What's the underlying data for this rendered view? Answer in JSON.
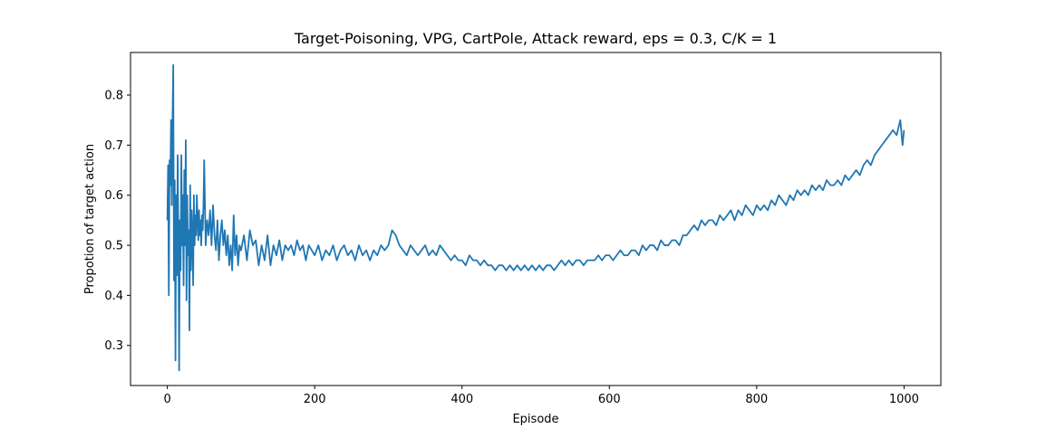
{
  "chart_data": {
    "type": "line",
    "title": "Target-Poisoning, VPG, CartPole, Attack reward, eps = 0.3, C/K = 1",
    "xlabel": "Episode",
    "ylabel": "Propotion of target action",
    "xlim": [
      -50,
      1050
    ],
    "ylim": [
      0.22,
      0.885
    ],
    "xticks": [
      0,
      200,
      400,
      600,
      800,
      1000
    ],
    "xtick_labels": [
      "0",
      "200",
      "400",
      "600",
      "800",
      "1000"
    ],
    "yticks": [
      0.3,
      0.4,
      0.5,
      0.6,
      0.7,
      0.8
    ],
    "ytick_labels": [
      "0.3",
      "0.4",
      "0.5",
      "0.6",
      "0.7",
      "0.8"
    ],
    "grid": false,
    "line_color": "#1f77b4",
    "series": [
      {
        "values": [
          [
            0,
            0.55
          ],
          [
            1,
            0.66
          ],
          [
            2,
            0.4
          ],
          [
            3,
            0.67
          ],
          [
            4,
            0.62
          ],
          [
            5,
            0.75
          ],
          [
            6,
            0.58
          ],
          [
            7,
            0.75
          ],
          [
            8,
            0.86
          ],
          [
            9,
            0.43
          ],
          [
            10,
            0.63
          ],
          [
            11,
            0.27
          ],
          [
            12,
            0.6
          ],
          [
            13,
            0.44
          ],
          [
            14,
            0.68
          ],
          [
            15,
            0.52
          ],
          [
            16,
            0.25
          ],
          [
            17,
            0.55
          ],
          [
            18,
            0.45
          ],
          [
            19,
            0.68
          ],
          [
            20,
            0.5
          ],
          [
            21,
            0.6
          ],
          [
            22,
            0.42
          ],
          [
            23,
            0.65
          ],
          [
            24,
            0.5
          ],
          [
            25,
            0.71
          ],
          [
            26,
            0.39
          ],
          [
            27,
            0.6
          ],
          [
            28,
            0.48
          ],
          [
            29,
            0.53
          ],
          [
            30,
            0.33
          ],
          [
            31,
            0.62
          ],
          [
            32,
            0.45
          ],
          [
            33,
            0.57
          ],
          [
            34,
            0.52
          ],
          [
            35,
            0.42
          ],
          [
            36,
            0.6
          ],
          [
            37,
            0.5
          ],
          [
            38,
            0.56
          ],
          [
            39,
            0.52
          ],
          [
            40,
            0.6
          ],
          [
            41,
            0.55
          ],
          [
            42,
            0.51
          ],
          [
            43,
            0.57
          ],
          [
            44,
            0.52
          ],
          [
            45,
            0.55
          ],
          [
            46,
            0.5
          ],
          [
            47,
            0.56
          ],
          [
            48,
            0.53
          ],
          [
            49,
            0.58
          ],
          [
            50,
            0.67
          ],
          [
            52,
            0.5
          ],
          [
            54,
            0.55
          ],
          [
            56,
            0.52
          ],
          [
            58,
            0.57
          ],
          [
            60,
            0.5
          ],
          [
            62,
            0.58
          ],
          [
            64,
            0.52
          ],
          [
            66,
            0.49
          ],
          [
            68,
            0.55
          ],
          [
            70,
            0.47
          ],
          [
            72,
            0.52
          ],
          [
            74,
            0.55
          ],
          [
            76,
            0.5
          ],
          [
            78,
            0.53
          ],
          [
            80,
            0.48
          ],
          [
            82,
            0.52
          ],
          [
            84,
            0.46
          ],
          [
            86,
            0.5
          ],
          [
            88,
            0.45
          ],
          [
            90,
            0.56
          ],
          [
            92,
            0.48
          ],
          [
            94,
            0.52
          ],
          [
            96,
            0.46
          ],
          [
            98,
            0.5
          ],
          [
            100,
            0.49
          ],
          [
            104,
            0.52
          ],
          [
            108,
            0.47
          ],
          [
            112,
            0.53
          ],
          [
            116,
            0.5
          ],
          [
            120,
            0.51
          ],
          [
            124,
            0.46
          ],
          [
            128,
            0.5
          ],
          [
            132,
            0.47
          ],
          [
            136,
            0.52
          ],
          [
            140,
            0.46
          ],
          [
            144,
            0.5
          ],
          [
            148,
            0.48
          ],
          [
            152,
            0.51
          ],
          [
            156,
            0.47
          ],
          [
            160,
            0.5
          ],
          [
            164,
            0.49
          ],
          [
            168,
            0.5
          ],
          [
            172,
            0.48
          ],
          [
            176,
            0.51
          ],
          [
            180,
            0.49
          ],
          [
            184,
            0.5
          ],
          [
            188,
            0.47
          ],
          [
            192,
            0.5
          ],
          [
            196,
            0.49
          ],
          [
            200,
            0.48
          ],
          [
            205,
            0.5
          ],
          [
            210,
            0.47
          ],
          [
            215,
            0.49
          ],
          [
            220,
            0.48
          ],
          [
            225,
            0.5
          ],
          [
            230,
            0.47
          ],
          [
            235,
            0.49
          ],
          [
            240,
            0.5
          ],
          [
            245,
            0.48
          ],
          [
            250,
            0.49
          ],
          [
            255,
            0.47
          ],
          [
            260,
            0.5
          ],
          [
            265,
            0.48
          ],
          [
            270,
            0.49
          ],
          [
            275,
            0.47
          ],
          [
            280,
            0.49
          ],
          [
            285,
            0.48
          ],
          [
            290,
            0.5
          ],
          [
            295,
            0.49
          ],
          [
            300,
            0.5
          ],
          [
            305,
            0.53
          ],
          [
            310,
            0.52
          ],
          [
            315,
            0.5
          ],
          [
            320,
            0.49
          ],
          [
            325,
            0.48
          ],
          [
            330,
            0.5
          ],
          [
            335,
            0.49
          ],
          [
            340,
            0.48
          ],
          [
            345,
            0.49
          ],
          [
            350,
            0.5
          ],
          [
            355,
            0.48
          ],
          [
            360,
            0.49
          ],
          [
            365,
            0.48
          ],
          [
            370,
            0.5
          ],
          [
            375,
            0.49
          ],
          [
            380,
            0.48
          ],
          [
            385,
            0.47
          ],
          [
            390,
            0.48
          ],
          [
            395,
            0.47
          ],
          [
            400,
            0.47
          ],
          [
            405,
            0.46
          ],
          [
            410,
            0.48
          ],
          [
            415,
            0.47
          ],
          [
            420,
            0.47
          ],
          [
            425,
            0.46
          ],
          [
            430,
            0.47
          ],
          [
            435,
            0.46
          ],
          [
            440,
            0.46
          ],
          [
            445,
            0.45
          ],
          [
            450,
            0.46
          ],
          [
            455,
            0.46
          ],
          [
            460,
            0.45
          ],
          [
            465,
            0.46
          ],
          [
            470,
            0.45
          ],
          [
            475,
            0.46
          ],
          [
            480,
            0.45
          ],
          [
            485,
            0.46
          ],
          [
            490,
            0.45
          ],
          [
            495,
            0.46
          ],
          [
            500,
            0.45
          ],
          [
            505,
            0.46
          ],
          [
            510,
            0.45
          ],
          [
            515,
            0.46
          ],
          [
            520,
            0.46
          ],
          [
            525,
            0.45
          ],
          [
            530,
            0.46
          ],
          [
            535,
            0.47
          ],
          [
            540,
            0.46
          ],
          [
            545,
            0.47
          ],
          [
            550,
            0.46
          ],
          [
            555,
            0.47
          ],
          [
            560,
            0.47
          ],
          [
            565,
            0.46
          ],
          [
            570,
            0.47
          ],
          [
            575,
            0.47
          ],
          [
            580,
            0.47
          ],
          [
            585,
            0.48
          ],
          [
            590,
            0.47
          ],
          [
            595,
            0.48
          ],
          [
            600,
            0.48
          ],
          [
            605,
            0.47
          ],
          [
            610,
            0.48
          ],
          [
            615,
            0.49
          ],
          [
            620,
            0.48
          ],
          [
            625,
            0.48
          ],
          [
            630,
            0.49
          ],
          [
            635,
            0.49
          ],
          [
            640,
            0.48
          ],
          [
            645,
            0.5
          ],
          [
            650,
            0.49
          ],
          [
            655,
            0.5
          ],
          [
            660,
            0.5
          ],
          [
            665,
            0.49
          ],
          [
            670,
            0.51
          ],
          [
            675,
            0.5
          ],
          [
            680,
            0.5
          ],
          [
            685,
            0.51
          ],
          [
            690,
            0.51
          ],
          [
            695,
            0.5
          ],
          [
            700,
            0.52
          ],
          [
            705,
            0.52
          ],
          [
            710,
            0.53
          ],
          [
            715,
            0.54
          ],
          [
            720,
            0.53
          ],
          [
            725,
            0.55
          ],
          [
            730,
            0.54
          ],
          [
            735,
            0.55
          ],
          [
            740,
            0.55
          ],
          [
            745,
            0.54
          ],
          [
            750,
            0.56
          ],
          [
            755,
            0.55
          ],
          [
            760,
            0.56
          ],
          [
            765,
            0.57
          ],
          [
            770,
            0.55
          ],
          [
            775,
            0.57
          ],
          [
            780,
            0.56
          ],
          [
            785,
            0.58
          ],
          [
            790,
            0.57
          ],
          [
            795,
            0.56
          ],
          [
            800,
            0.58
          ],
          [
            805,
            0.57
          ],
          [
            810,
            0.58
          ],
          [
            815,
            0.57
          ],
          [
            820,
            0.59
          ],
          [
            825,
            0.58
          ],
          [
            830,
            0.6
          ],
          [
            835,
            0.59
          ],
          [
            840,
            0.58
          ],
          [
            845,
            0.6
          ],
          [
            850,
            0.59
          ],
          [
            855,
            0.61
          ],
          [
            860,
            0.6
          ],
          [
            865,
            0.61
          ],
          [
            870,
            0.6
          ],
          [
            875,
            0.62
          ],
          [
            880,
            0.61
          ],
          [
            885,
            0.62
          ],
          [
            890,
            0.61
          ],
          [
            895,
            0.63
          ],
          [
            900,
            0.62
          ],
          [
            905,
            0.62
          ],
          [
            910,
            0.63
          ],
          [
            915,
            0.62
          ],
          [
            920,
            0.64
          ],
          [
            925,
            0.63
          ],
          [
            930,
            0.64
          ],
          [
            935,
            0.65
          ],
          [
            940,
            0.64
          ],
          [
            945,
            0.66
          ],
          [
            950,
            0.67
          ],
          [
            955,
            0.66
          ],
          [
            960,
            0.68
          ],
          [
            965,
            0.69
          ],
          [
            970,
            0.7
          ],
          [
            975,
            0.71
          ],
          [
            980,
            0.72
          ],
          [
            985,
            0.73
          ],
          [
            990,
            0.72
          ],
          [
            995,
            0.75
          ],
          [
            998,
            0.7
          ],
          [
            1000,
            0.73
          ]
        ]
      }
    ]
  }
}
